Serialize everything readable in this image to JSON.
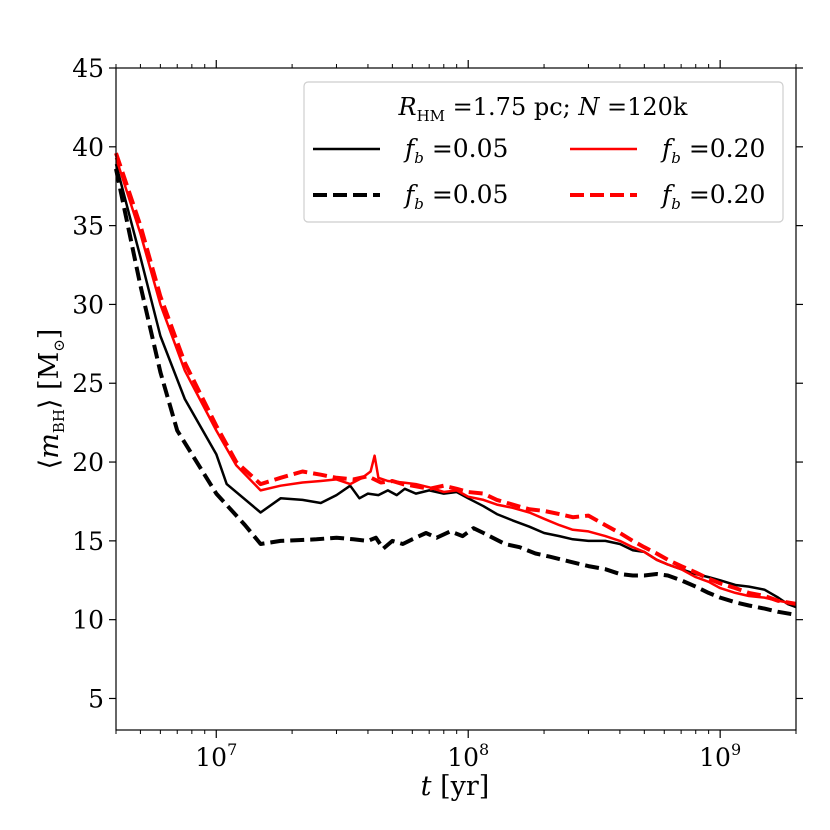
{
  "chart_data": {
    "type": "line",
    "title": "",
    "xlabel": "t [yr]",
    "ylabel": "⟨m_BH⟩ [M_⊙]",
    "xscale": "log",
    "xlim": [
      4000000,
      2000000000
    ],
    "ylim": [
      3,
      45
    ],
    "xtick_labels": {
      "1e7": {
        "base": "10",
        "exp": "7"
      },
      "1e8": {
        "base": "10",
        "exp": "8"
      },
      "1e9": {
        "base": "10",
        "exp": "9"
      }
    },
    "yticks": [
      "5",
      "10",
      "15",
      "20",
      "25",
      "30",
      "35",
      "40",
      "45"
    ],
    "legend": {
      "location": "upper right",
      "title_parts": {
        "r": "R",
        "sub": "HM",
        "mid": " =1.75 pc; ",
        "n": "N",
        "end": " =120k"
      },
      "entries": [
        {
          "var": "f",
          "sub": "b",
          "text": " =0.05"
        },
        {
          "var": "f",
          "sub": "b",
          "text": " =0.20"
        },
        {
          "var": "f",
          "sub": "b",
          "text": " =0.05"
        },
        {
          "var": "f",
          "sub": "b",
          "text": " =0.20"
        }
      ]
    },
    "series": [
      {
        "name": "f_b=0.05 solid",
        "color": "#000000",
        "dash": "solid",
        "width": 2.5,
        "points": [
          [
            4000000,
            38.9
          ],
          [
            5000000,
            33.0
          ],
          [
            6000000,
            28.0
          ],
          [
            7500000,
            24.0
          ],
          [
            10000000,
            20.5
          ],
          [
            11000000,
            18.6
          ],
          [
            15000000,
            16.8
          ],
          [
            18000000,
            17.7
          ],
          [
            22000000,
            17.6
          ],
          [
            26000000,
            17.4
          ],
          [
            30000000,
            17.9
          ],
          [
            34000000,
            18.5
          ],
          [
            37000000,
            17.7
          ],
          [
            40000000,
            18.0
          ],
          [
            44000000,
            17.9
          ],
          [
            48000000,
            18.2
          ],
          [
            52000000,
            17.9
          ],
          [
            56000000,
            18.3
          ],
          [
            62000000,
            18.0
          ],
          [
            70000000,
            18.2
          ],
          [
            80000000,
            18.0
          ],
          [
            90000000,
            18.1
          ],
          [
            100000000,
            17.7
          ],
          [
            115000000,
            17.2
          ],
          [
            130000000,
            16.7
          ],
          [
            150000000,
            16.3
          ],
          [
            175000000,
            15.9
          ],
          [
            200000000,
            15.5
          ],
          [
            230000000,
            15.3
          ],
          [
            260000000,
            15.1
          ],
          [
            300000000,
            15.0
          ],
          [
            350000000,
            15.0
          ],
          [
            400000000,
            14.8
          ],
          [
            450000000,
            14.4
          ],
          [
            500000000,
            14.3
          ],
          [
            560000000,
            13.8
          ],
          [
            620000000,
            13.5
          ],
          [
            700000000,
            13.2
          ],
          [
            800000000,
            12.9
          ],
          [
            900000000,
            12.7
          ],
          [
            1000000000,
            12.5
          ],
          [
            1150000000,
            12.2
          ],
          [
            1300000000,
            12.1
          ],
          [
            1500000000,
            11.9
          ],
          [
            1700000000,
            11.4
          ],
          [
            1850000000,
            11.0
          ],
          [
            2000000000,
            10.8
          ]
        ]
      },
      {
        "name": "f_b=0.05 dashed",
        "color": "#000000",
        "dash": "dashed",
        "width": 4,
        "points": [
          [
            4000000,
            38.6
          ],
          [
            5000000,
            31.2
          ],
          [
            6000000,
            25.7
          ],
          [
            7000000,
            22.0
          ],
          [
            10000000,
            18.0
          ],
          [
            13000000,
            16.0
          ],
          [
            15000000,
            14.8
          ],
          [
            18000000,
            15.0
          ],
          [
            25000000,
            15.1
          ],
          [
            30000000,
            15.2
          ],
          [
            35000000,
            15.1
          ],
          [
            40000000,
            15.0
          ],
          [
            43000000,
            15.2
          ],
          [
            46000000,
            14.5
          ],
          [
            50000000,
            15.0
          ],
          [
            55000000,
            14.8
          ],
          [
            60000000,
            15.1
          ],
          [
            68000000,
            15.5
          ],
          [
            75000000,
            15.2
          ],
          [
            85000000,
            15.6
          ],
          [
            95000000,
            15.3
          ],
          [
            105000000,
            15.8
          ],
          [
            115000000,
            15.5
          ],
          [
            125000000,
            15.2
          ],
          [
            140000000,
            14.8
          ],
          [
            160000000,
            14.6
          ],
          [
            185000000,
            14.2
          ],
          [
            210000000,
            14.0
          ],
          [
            250000000,
            13.7
          ],
          [
            300000000,
            13.4
          ],
          [
            350000000,
            13.2
          ],
          [
            400000000,
            12.9
          ],
          [
            450000000,
            12.8
          ],
          [
            500000000,
            12.8
          ],
          [
            560000000,
            12.9
          ],
          [
            620000000,
            12.8
          ],
          [
            700000000,
            12.5
          ],
          [
            800000000,
            12.1
          ],
          [
            900000000,
            11.7
          ],
          [
            1000000000,
            11.4
          ],
          [
            1150000000,
            11.1
          ],
          [
            1300000000,
            10.9
          ],
          [
            1500000000,
            10.7
          ],
          [
            1700000000,
            10.5
          ],
          [
            2000000000,
            10.3
          ]
        ]
      },
      {
        "name": "f_b=0.20 solid",
        "color": "#ff0000",
        "dash": "solid",
        "width": 2.5,
        "points": [
          [
            4000000,
            39.3
          ],
          [
            5000000,
            34.5
          ],
          [
            6000000,
            30.0
          ],
          [
            7500000,
            25.8
          ],
          [
            10000000,
            22.0
          ],
          [
            12000000,
            19.8
          ],
          [
            15000000,
            18.2
          ],
          [
            18000000,
            18.5
          ],
          [
            22000000,
            18.7
          ],
          [
            26000000,
            18.8
          ],
          [
            30000000,
            18.9
          ],
          [
            34000000,
            18.6
          ],
          [
            38000000,
            19.0
          ],
          [
            41000000,
            19.4
          ],
          [
            42500000,
            20.4
          ],
          [
            44000000,
            19.0
          ],
          [
            48000000,
            18.8
          ],
          [
            55000000,
            18.7
          ],
          [
            62000000,
            18.6
          ],
          [
            70000000,
            18.4
          ],
          [
            80000000,
            18.1
          ],
          [
            90000000,
            18.2
          ],
          [
            100000000,
            17.8
          ],
          [
            115000000,
            17.6
          ],
          [
            130000000,
            17.3
          ],
          [
            150000000,
            17.1
          ],
          [
            175000000,
            16.8
          ],
          [
            200000000,
            16.4
          ],
          [
            230000000,
            16.0
          ],
          [
            260000000,
            15.7
          ],
          [
            300000000,
            15.6
          ],
          [
            350000000,
            15.3
          ],
          [
            400000000,
            15.0
          ],
          [
            450000000,
            14.6
          ],
          [
            500000000,
            14.3
          ],
          [
            560000000,
            13.8
          ],
          [
            620000000,
            13.5
          ],
          [
            700000000,
            13.2
          ],
          [
            800000000,
            12.7
          ],
          [
            900000000,
            12.4
          ],
          [
            1000000000,
            12.0
          ],
          [
            1150000000,
            11.7
          ],
          [
            1300000000,
            11.5
          ],
          [
            1500000000,
            11.4
          ],
          [
            1700000000,
            11.2
          ],
          [
            2000000000,
            11.0
          ]
        ]
      },
      {
        "name": "f_b=0.20 dashed",
        "color": "#ff0000",
        "dash": "dashed",
        "width": 4,
        "points": [
          [
            4000000,
            39.6
          ],
          [
            5000000,
            35.0
          ],
          [
            6000000,
            30.5
          ],
          [
            7500000,
            26.3
          ],
          [
            10000000,
            22.3
          ],
          [
            12000000,
            20.0
          ],
          [
            15000000,
            18.6
          ],
          [
            18000000,
            19.0
          ],
          [
            22000000,
            19.4
          ],
          [
            26000000,
            19.2
          ],
          [
            30000000,
            19.0
          ],
          [
            35000000,
            18.9
          ],
          [
            40000000,
            19.1
          ],
          [
            45000000,
            18.7
          ],
          [
            50000000,
            18.8
          ],
          [
            55000000,
            18.6
          ],
          [
            60000000,
            18.5
          ],
          [
            70000000,
            18.3
          ],
          [
            80000000,
            18.5
          ],
          [
            90000000,
            18.3
          ],
          [
            100000000,
            18.1
          ],
          [
            115000000,
            18.0
          ],
          [
            130000000,
            17.6
          ],
          [
            150000000,
            17.3
          ],
          [
            175000000,
            17.0
          ],
          [
            200000000,
            16.9
          ],
          [
            230000000,
            16.7
          ],
          [
            260000000,
            16.5
          ],
          [
            300000000,
            16.6
          ],
          [
            350000000,
            16.0
          ],
          [
            400000000,
            15.5
          ],
          [
            450000000,
            15.0
          ],
          [
            500000000,
            14.6
          ],
          [
            560000000,
            14.2
          ],
          [
            620000000,
            13.8
          ],
          [
            700000000,
            13.4
          ],
          [
            800000000,
            13.0
          ],
          [
            900000000,
            12.6
          ],
          [
            1000000000,
            12.3
          ],
          [
            1150000000,
            12.0
          ],
          [
            1300000000,
            11.7
          ],
          [
            1500000000,
            11.5
          ],
          [
            1700000000,
            11.2
          ],
          [
            2000000000,
            11.0
          ]
        ]
      }
    ]
  }
}
